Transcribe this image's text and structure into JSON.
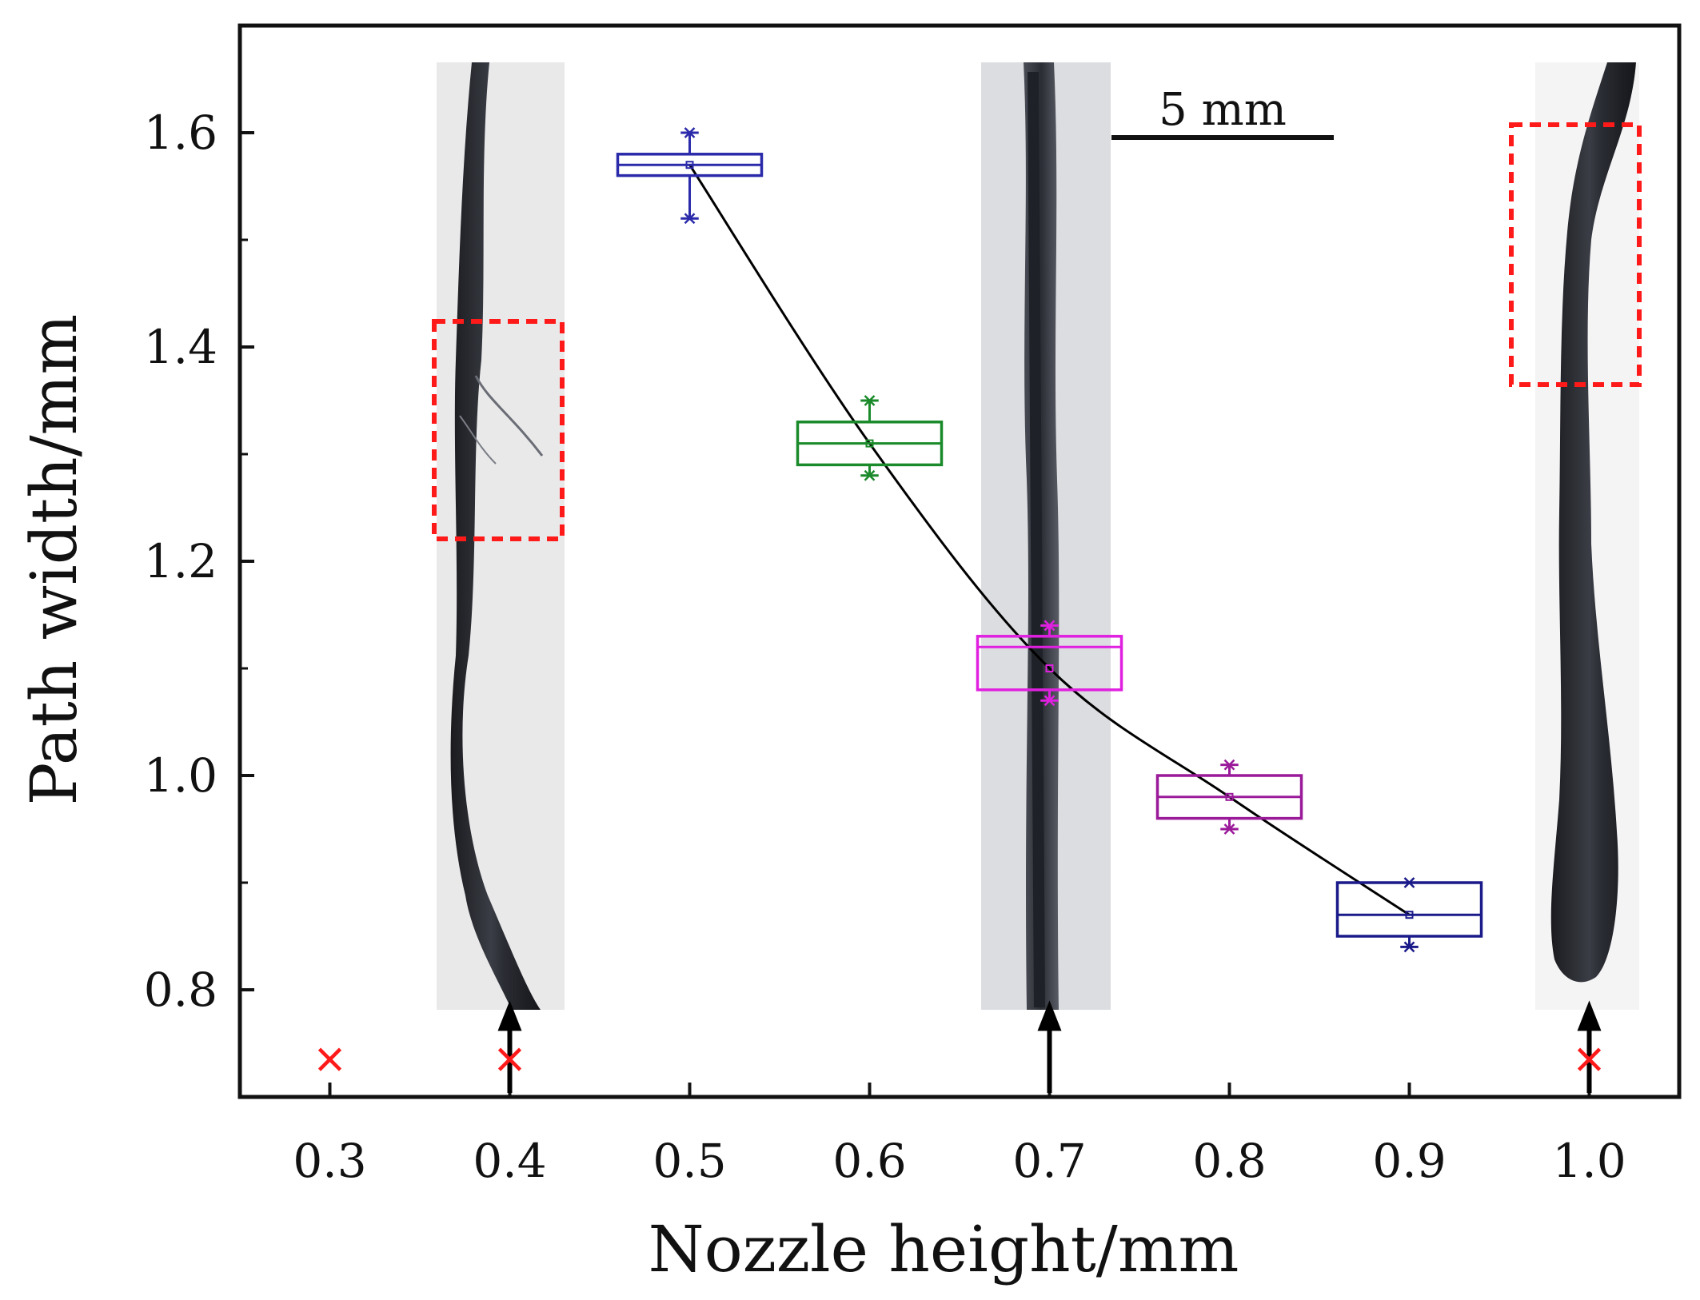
{
  "chart_data": {
    "type": "box",
    "xlabel": "Nozzle height/mm",
    "ylabel": "Path width/mm",
    "xlim": [
      0.25,
      1.05
    ],
    "ylim": [
      0.7,
      1.7
    ],
    "xticks": [
      {
        "value": 0.3,
        "label": "0.3"
      },
      {
        "value": 0.4,
        "label": "0.4"
      },
      {
        "value": 0.5,
        "label": "0.5"
      },
      {
        "value": 0.6,
        "label": "0.6"
      },
      {
        "value": 0.7,
        "label": "0.7"
      },
      {
        "value": 0.8,
        "label": "0.8"
      },
      {
        "value": 0.9,
        "label": "0.9"
      },
      {
        "value": 1.0,
        "label": "1.0"
      }
    ],
    "yticks": [
      {
        "value": 0.8,
        "label": "0.8"
      },
      {
        "value": 1.0,
        "label": "1.0"
      },
      {
        "value": 1.2,
        "label": "1.2"
      },
      {
        "value": 1.4,
        "label": "1.4"
      },
      {
        "value": 1.6,
        "label": "1.6"
      }
    ],
    "boxes": [
      {
        "x": 0.5,
        "min": 1.52,
        "q1": 1.56,
        "median": 1.57,
        "q3": 1.58,
        "max": 1.6,
        "mean": 1.57,
        "color": "#2a2aaa"
      },
      {
        "x": 0.6,
        "min": 1.28,
        "q1": 1.29,
        "median": 1.31,
        "q3": 1.33,
        "max": 1.35,
        "mean": 1.31,
        "color": "#1a8a2a"
      },
      {
        "x": 0.7,
        "min": 1.07,
        "q1": 1.08,
        "median": 1.12,
        "q3": 1.13,
        "max": 1.14,
        "mean": 1.1,
        "color": "#e020e0"
      },
      {
        "x": 0.8,
        "min": 0.95,
        "q1": 0.96,
        "median": 0.98,
        "q3": 1.0,
        "max": 1.01,
        "mean": 0.98,
        "color": "#9a1a9a"
      },
      {
        "x": 0.9,
        "min": 0.84,
        "q1": 0.85,
        "median": 0.87,
        "q3": 0.9,
        "max": 0.9,
        "mean": 0.87,
        "color": "#1a1a8a"
      }
    ],
    "trend_line": {
      "x": [
        0.5,
        0.6,
        0.7,
        0.8,
        0.9
      ],
      "y": [
        1.57,
        1.31,
        1.1,
        0.98,
        0.87
      ],
      "color": "#000000"
    },
    "failed_points": {
      "x": [
        0.3,
        0.4,
        1.0
      ],
      "y": [
        0.735,
        0.735,
        0.735
      ],
      "marker": "x",
      "color": "#ff1a1a"
    },
    "image_markers": {
      "x": [
        0.4,
        0.7,
        1.0
      ],
      "description": "photographs of printed paths with arrows"
    },
    "scale_bar_label": "5 mm"
  }
}
